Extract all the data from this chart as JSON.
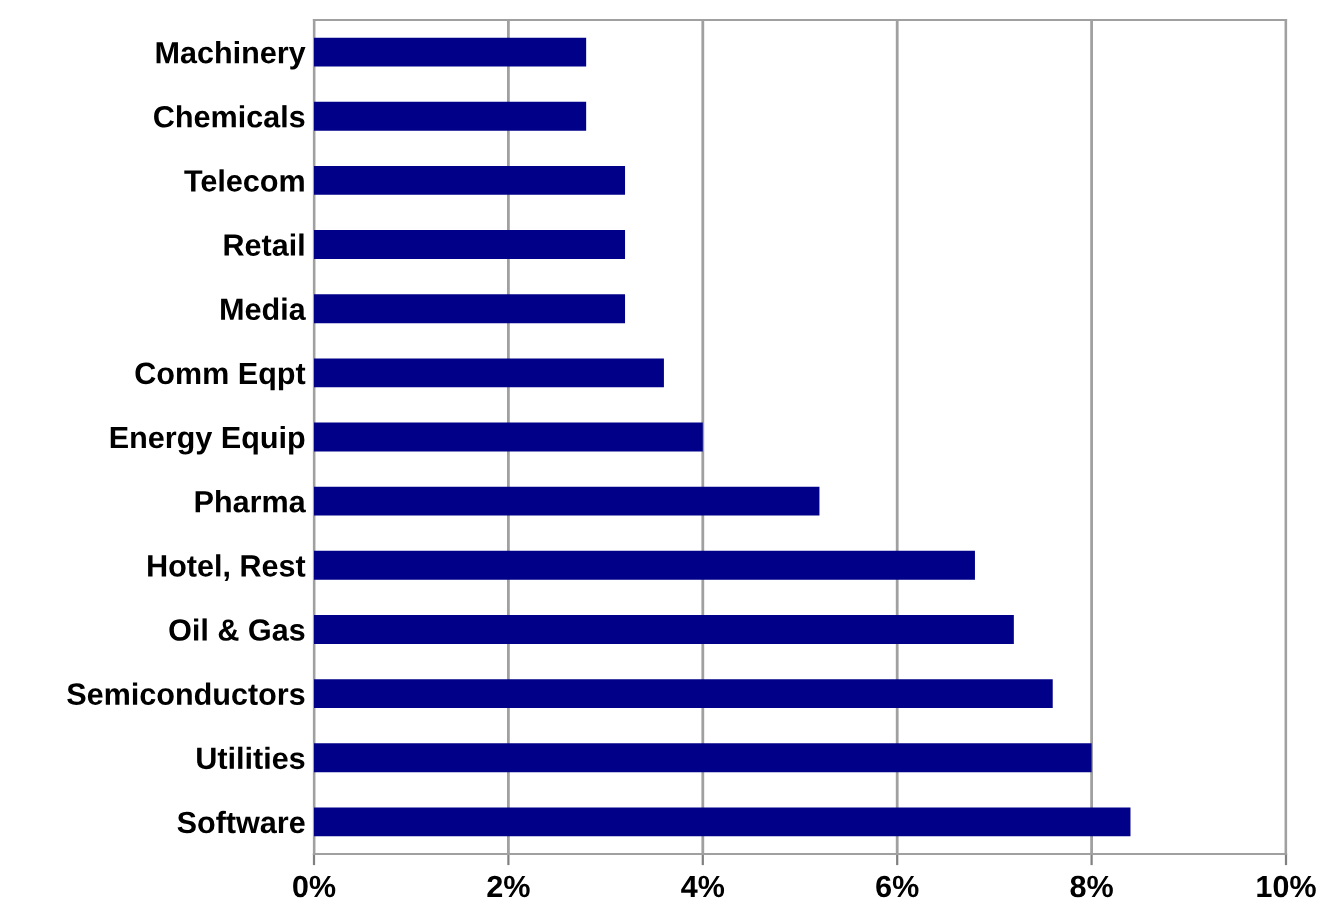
{
  "chart_data": {
    "type": "bar",
    "orientation": "horizontal",
    "categories": [
      "Machinery",
      "Chemicals",
      "Telecom",
      "Retail",
      "Media",
      "Comm Eqpt",
      "Energy Equip",
      "Pharma",
      "Hotel, Rest",
      "Oil & Gas",
      "Semiconductors",
      "Utilities",
      "Software"
    ],
    "values": [
      2.8,
      2.8,
      3.2,
      3.2,
      3.2,
      3.6,
      4.0,
      5.2,
      6.8,
      7.2,
      7.6,
      8.0,
      8.4
    ],
    "color": "#000088",
    "xlim": [
      0,
      10
    ],
    "xticks": [
      {
        "value": 0,
        "label": "0%"
      },
      {
        "value": 2,
        "label": "2%"
      },
      {
        "value": 4,
        "label": "4%"
      },
      {
        "value": 6,
        "label": "6%"
      },
      {
        "value": 8,
        "label": "8%"
      },
      {
        "value": 10,
        "label": "10%"
      }
    ],
    "grid": "x"
  }
}
